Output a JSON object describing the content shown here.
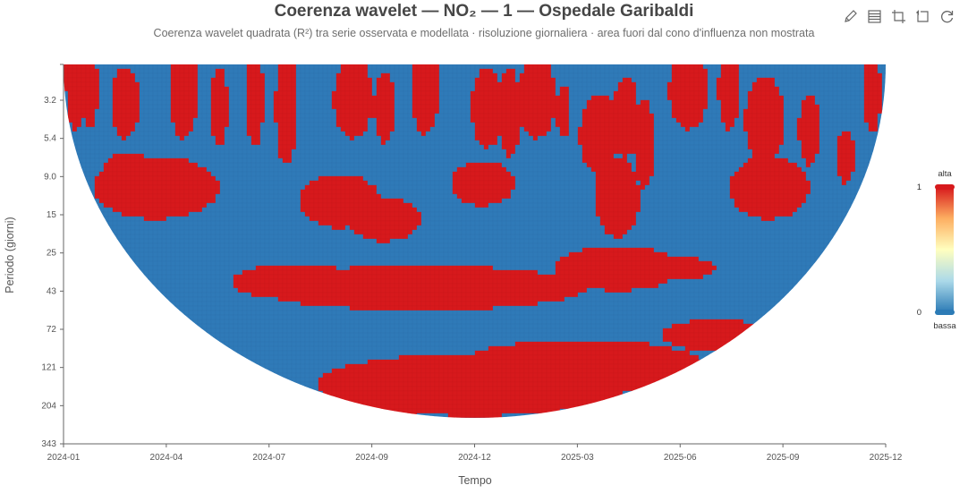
{
  "chart_data": {
    "type": "heatmap",
    "title": "Coerenza wavelet — NO₂ — 1 — Ospedale Garibaldi",
    "subtitle": "Coerenza wavelet quadrata (R²) tra serie osservata e modellata · risoluzione giornaliera · area fuori dal cono d'influenza non mostrata",
    "xlabel": "Tempo",
    "ylabel": "Periodo (giorni)",
    "x_ticks": [
      "2024-01",
      "2024-04",
      "2024-07",
      "2024-09",
      "2024-12",
      "2025-03",
      "2025-06",
      "2025-09",
      "2025-12"
    ],
    "y_ticks": [
      "3.2",
      "5.4",
      "9.0",
      "15",
      "25",
      "43",
      "72",
      "121",
      "204",
      "343"
    ],
    "y_scale": "log",
    "y_range_days": [
      2,
      343
    ],
    "x_range": [
      "2024-01-01",
      "2025-12-01"
    ],
    "value_range": [
      0,
      1
    ],
    "visual_map": {
      "high_label": "alta",
      "low_label": "bassa",
      "max": "1",
      "min": "0"
    },
    "colors": {
      "low": "#2f7ab8",
      "high": "#d7191c",
      "gradient": [
        "#2c7bb6",
        "#abd9e9",
        "#ffffbf",
        "#fdae61",
        "#d7191c"
      ]
    },
    "grid": false
  },
  "toolbox": {
    "edit_icon": "pencil-icon",
    "data_icon": "data-view-icon",
    "zoom_icon": "zoom-icon",
    "zoom_reset_icon": "zoom-reset-icon",
    "restore_icon": "restore-icon"
  }
}
